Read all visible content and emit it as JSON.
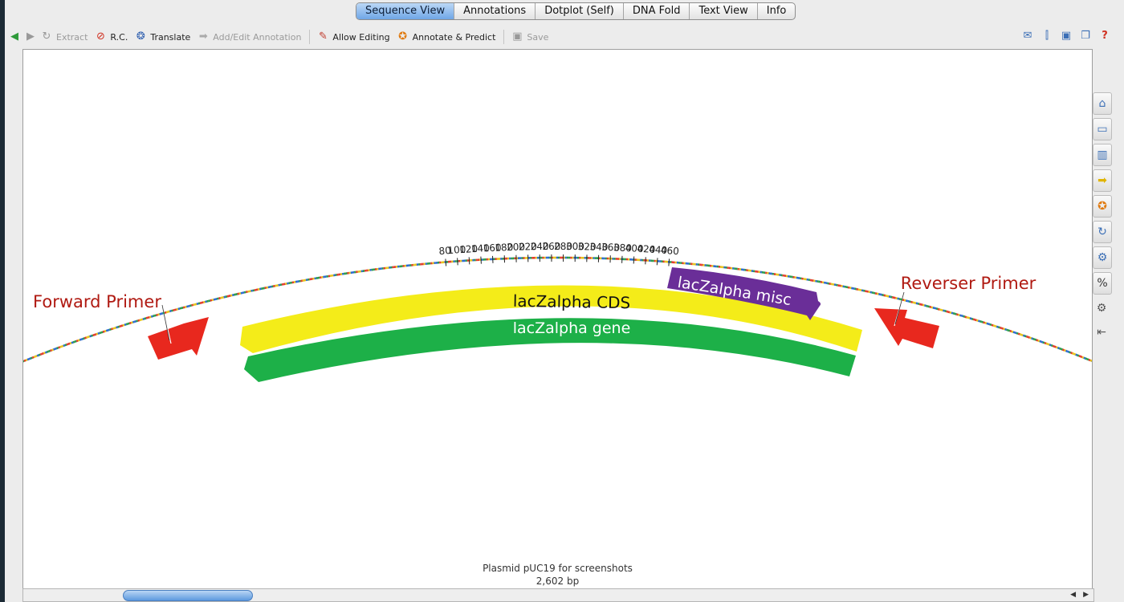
{
  "tabs": [
    "Sequence View",
    "Annotations",
    "Dotplot (Self)",
    "DNA Fold",
    "Text View",
    "Info"
  ],
  "active_tab": "Sequence View",
  "toolbar": {
    "extract": "Extract",
    "rc": "R.C.",
    "translate": "Translate",
    "add_edit": "Add/Edit Annotation",
    "allow_editing": "Allow Editing",
    "annotate": "Annotate & Predict",
    "save": "Save"
  },
  "icons": {
    "back": "arrow-left-icon",
    "forward": "arrow-right-icon",
    "extract": "extract-icon",
    "rc": "reverse-complement-icon",
    "translate": "translate-icon",
    "add_edit": "annotation-icon",
    "allow_editing": "pencil-icon",
    "annotate": "annotate-predict-icon",
    "save": "save-icon"
  },
  "map": {
    "ticks": [
      "80",
      "100",
      "120",
      "140",
      "160",
      "180",
      "200",
      "220",
      "240",
      "260",
      "280",
      "300",
      "320",
      "340",
      "360",
      "380",
      "400",
      "420",
      "440",
      "460"
    ],
    "labels": {
      "forward_primer": "Forward Primer",
      "reverse_primer": "Reverser Primer",
      "cds": "lacZalpha CDS",
      "gene": "lacZalpha gene",
      "misc": "lacZalpha misc"
    },
    "colors": {
      "primer": "#e8281e",
      "primer_label": "#b01a12",
      "cds": "#f4ec19",
      "gene": "#1db048",
      "misc": "#6a2e98"
    }
  },
  "footer": {
    "name": "Plasmid pUC19 for screenshots",
    "length": "2,602 bp"
  },
  "sidebar": [
    "home-icon",
    "monitor-icon",
    "bar-chart-icon",
    "arrow-annotation-icon",
    "tag-icon",
    "refresh-icon",
    "settings-icon",
    "percent-icon"
  ]
}
